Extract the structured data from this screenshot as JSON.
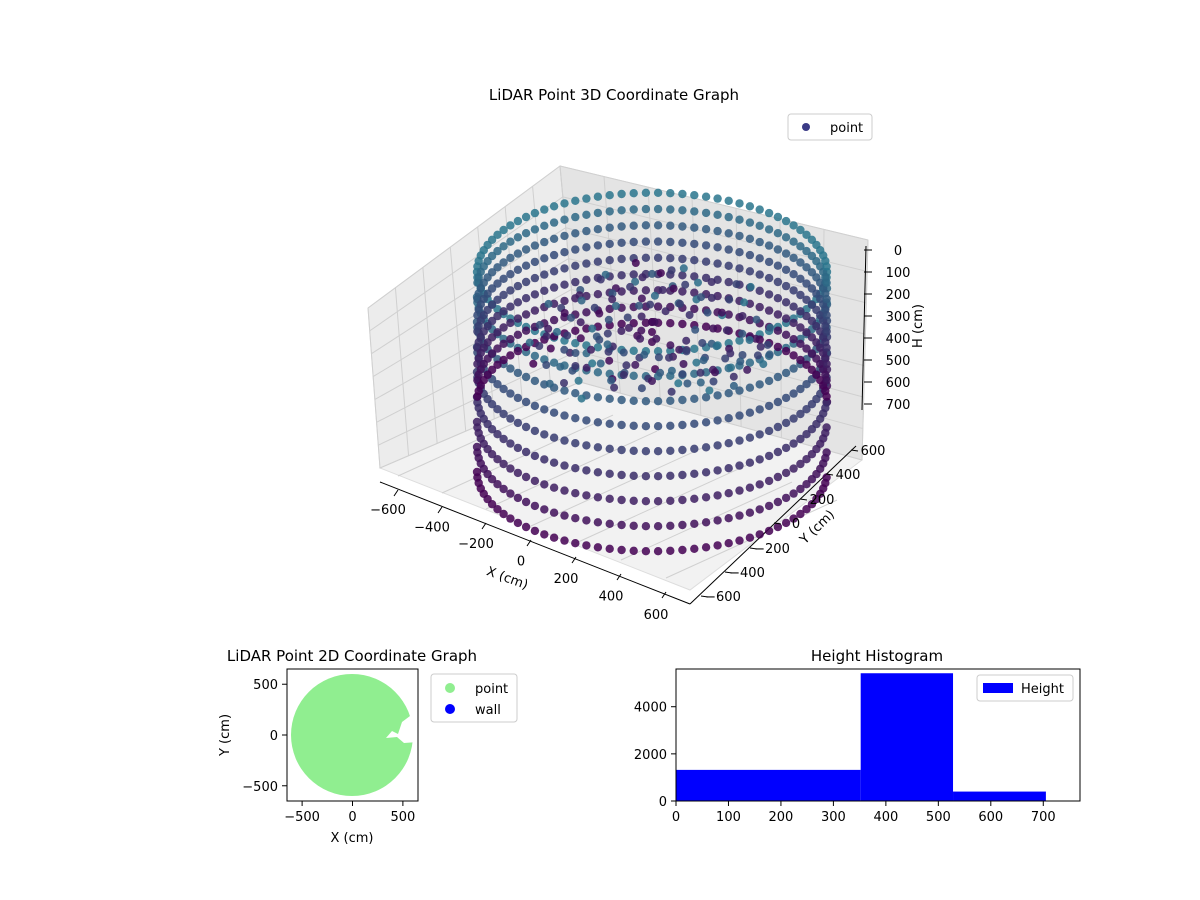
{
  "chart_data": [
    {
      "type": "scatter3d",
      "title": "LiDAR Point 3D Coordinate Graph",
      "xlabel": "X (cm)",
      "ylabel": "Y (cm)",
      "zlabel": "H (cm)",
      "xticks": [
        "−600",
        "−400",
        "−200",
        "0",
        "200",
        "400",
        "600"
      ],
      "yticks": [
        "−600",
        "−400",
        "−200",
        "0",
        "200",
        "400",
        "600"
      ],
      "zticks": [
        "0",
        "100",
        "200",
        "300",
        "400",
        "500",
        "600",
        "700"
      ],
      "xlim": [
        -650,
        650
      ],
      "ylim": [
        -650,
        650
      ],
      "zlim": [
        0,
        750
      ],
      "z_inverted": true,
      "legend": {
        "position": "top-right",
        "entries": [
          {
            "label": "point",
            "color": "#3b3b86"
          }
        ]
      },
      "colors": {
        "low": "#2a788e",
        "high": "#440154"
      },
      "series": [
        {
          "name": "point",
          "shape": "ring",
          "radius": [
            520,
            620
          ],
          "h_range": [
            0,
            710
          ]
        }
      ]
    },
    {
      "type": "scatter",
      "title": "LiDAR Point 2D Coordinate Graph",
      "xlabel": "X (cm)",
      "ylabel": "Y (cm)",
      "xticks": [
        "−500",
        "0",
        "500"
      ],
      "yticks": [
        "500",
        "0",
        "−500"
      ],
      "xlim": [
        -650,
        650
      ],
      "ylim": [
        -650,
        650
      ],
      "legend": {
        "position": "outside-right",
        "entries": [
          {
            "label": "point",
            "color": "#90ee90"
          },
          {
            "label": "wall",
            "color": "#0000ff"
          }
        ]
      },
      "series": [
        {
          "name": "point",
          "color": "#90ee90",
          "shape": "disc",
          "center": [
            0,
            0
          ],
          "radius": 610
        },
        {
          "name": "wall",
          "color": "#0000ff",
          "shape": "none"
        }
      ]
    },
    {
      "type": "bar",
      "title": "Height Histogram",
      "xlabel": "",
      "ylabel": "",
      "xticks": [
        "0",
        "100",
        "200",
        "300",
        "400",
        "500",
        "600",
        "700"
      ],
      "yticks": [
        "0",
        "2000",
        "4000"
      ],
      "xlim": [
        0,
        770
      ],
      "ylim": [
        0,
        5600
      ],
      "legend": {
        "position": "top-right",
        "entries": [
          {
            "label": "Height",
            "color": "#0000ff"
          }
        ]
      },
      "bins": [
        {
          "from": 0,
          "to": 352,
          "count": 1320
        },
        {
          "from": 352,
          "to": 528,
          "count": 5420
        },
        {
          "from": 528,
          "to": 705,
          "count": 400
        }
      ],
      "series": [
        {
          "name": "Height",
          "color": "#0000ff"
        }
      ]
    }
  ]
}
